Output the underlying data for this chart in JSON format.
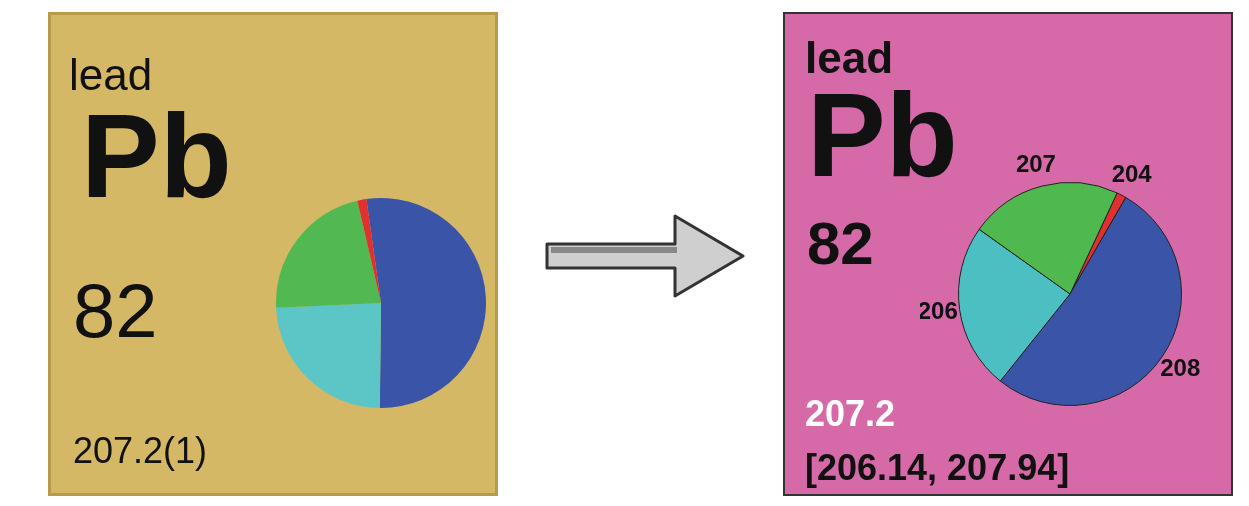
{
  "chart_data": [
    {
      "type": "pie",
      "categories": [
        null,
        null,
        null,
        null
      ],
      "values": [
        52.4,
        24.1,
        22.1,
        1.4
      ],
      "colors": [
        "#3a55a8",
        "#5cc6c6",
        "#52b852",
        "#e03030"
      ],
      "legend": false,
      "annotations": [
        "lead",
        "Pb",
        "82",
        "207.2(1)"
      ]
    },
    {
      "type": "pie",
      "categories": [
        "204",
        "208",
        "206",
        "207"
      ],
      "values": [
        1.4,
        52.4,
        24.1,
        22.1
      ],
      "colors": [
        "#e03030",
        "#3a55a8",
        "#4cbfc2",
        "#4fb84f"
      ],
      "legend": false,
      "annotations": [
        "lead",
        "Pb",
        "82",
        "207.2",
        "[206.14, 207.94]"
      ]
    }
  ]
}
